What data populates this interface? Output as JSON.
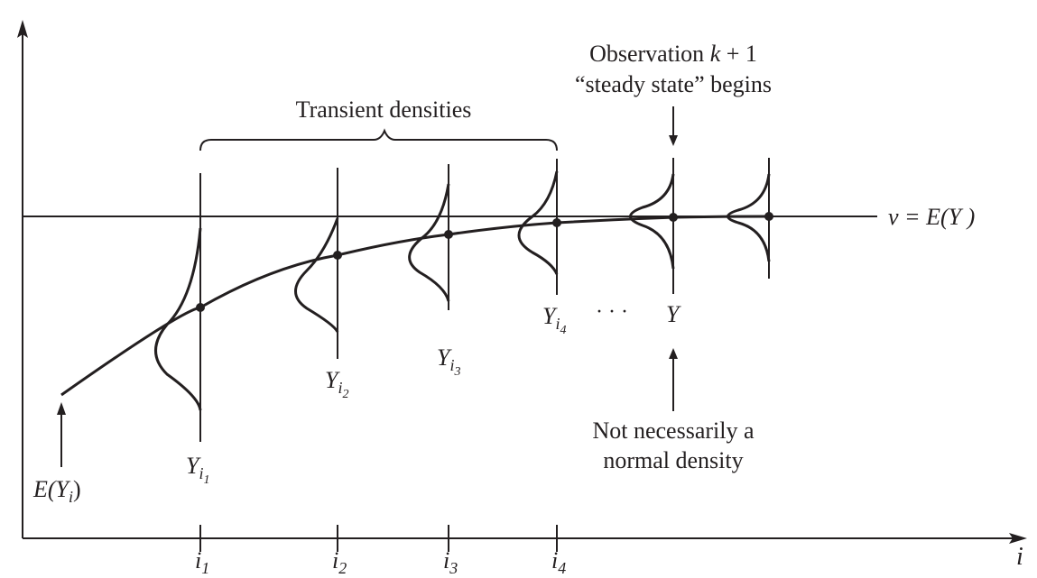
{
  "labels": {
    "transient": "Transient densities",
    "observation": "Observation ",
    "obs_k": "k",
    "obs_plus1": " + 1",
    "steady": "“steady state” begins",
    "nu_eq": "ν = E(Y )",
    "not_normal_1": "Not necessarily a",
    "not_normal_2": "normal density",
    "ellipsis": "· · ·",
    "axis_x": "i",
    "y_final": "Y",
    "e_left": "E(Y",
    "e_sub": "i",
    "e_right": ")"
  },
  "observations": [
    {
      "main": "Y",
      "sub": "i",
      "subsub": "1",
      "tick_main": "i",
      "tick_sub": "1"
    },
    {
      "main": "Y",
      "sub": "i",
      "subsub": "2",
      "tick_main": "i",
      "tick_sub": "2"
    },
    {
      "main": "Y",
      "sub": "i",
      "subsub": "3",
      "tick_main": "i",
      "tick_sub": "3"
    },
    {
      "main": "Y",
      "sub": "i",
      "subsub": "4",
      "tick_main": "i",
      "tick_sub": "4"
    }
  ]
}
